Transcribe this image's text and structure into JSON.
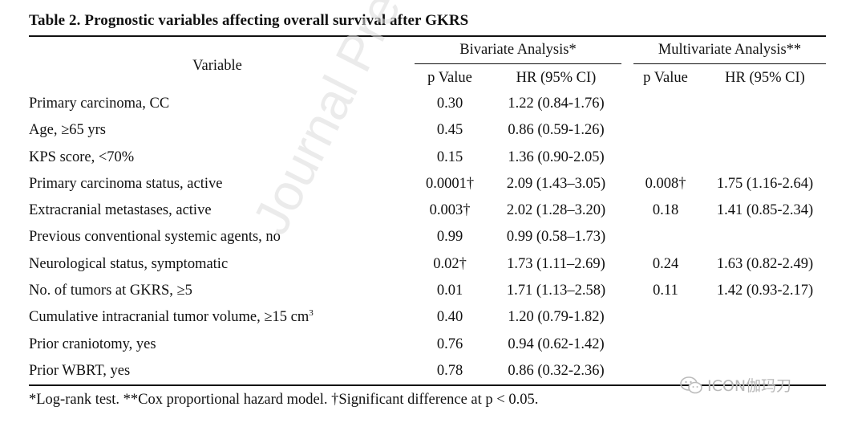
{
  "title": "Table 2. Prognostic variables affecting overall survival after GKRS",
  "headers": {
    "variable": "Variable",
    "bivariate": "Bivariate Analysis*",
    "multivariate": "Multivariate Analysis**",
    "p_value": "p Value",
    "hr": "HR (95% CI)"
  },
  "rows": [
    {
      "variable": "Primary carcinoma, CC",
      "p1": "0.30",
      "hr1": "1.22 (0.84-1.76)",
      "p2": "",
      "hr2": ""
    },
    {
      "variable": "Age, ≥65 yrs",
      "p1": "0.45",
      "hr1": "0.86 (0.59-1.26)",
      "p2": "",
      "hr2": ""
    },
    {
      "variable": "KPS score, <70%",
      "p1": "0.15",
      "hr1": "1.36 (0.90-2.05)",
      "p2": "",
      "hr2": ""
    },
    {
      "variable": "Primary carcinoma status, active",
      "p1": "0.0001†",
      "hr1": "2.09 (1.43–3.05)",
      "p2": "0.008†",
      "hr2": "1.75 (1.16-2.64)"
    },
    {
      "variable": "Extracranial metastases, active",
      "p1": "0.003†",
      "hr1": "2.02 (1.28–3.20)",
      "p2": "0.18",
      "hr2": "1.41 (0.85-2.34)"
    },
    {
      "variable": "Previous conventional systemic agents, no",
      "p1": "0.99",
      "hr1": "0.99 (0.58–1.73)",
      "p2": "",
      "hr2": ""
    },
    {
      "variable": "Neurological status, symptomatic",
      "p1": "0.02†",
      "hr1": "1.73 (1.11–2.69)",
      "p2": "0.24",
      "hr2": "1.63 (0.82-2.49)"
    },
    {
      "variable": "No. of tumors at GKRS, ≥5",
      "p1": "0.01",
      "hr1": "1.71 (1.13–2.58)",
      "p2": "0.11",
      "hr2": "1.42 (0.93-2.17)"
    },
    {
      "variable": "Cumulative intracranial tumor volume, ≥15 cm",
      "variable_sup": "3",
      "p1": "0.40",
      "hr1": "1.20 (0.79-1.82)",
      "p2": "",
      "hr2": ""
    },
    {
      "variable": "Prior craniotomy, yes",
      "p1": "0.76",
      "hr1": "0.94 (0.62-1.42)",
      "p2": "",
      "hr2": ""
    },
    {
      "variable": "Prior WBRT, yes",
      "p1": "0.78",
      "hr1": "0.86 (0.32-2.36)",
      "p2": "",
      "hr2": ""
    }
  ],
  "footnote": "*Log-rank test. **Cox proportional hazard model. †Significant difference at p < 0.05.",
  "watermark": "Journal Pre-proof",
  "wechat_label": "ICON伽玛刀",
  "wechat_icon": "wechat-icon"
}
